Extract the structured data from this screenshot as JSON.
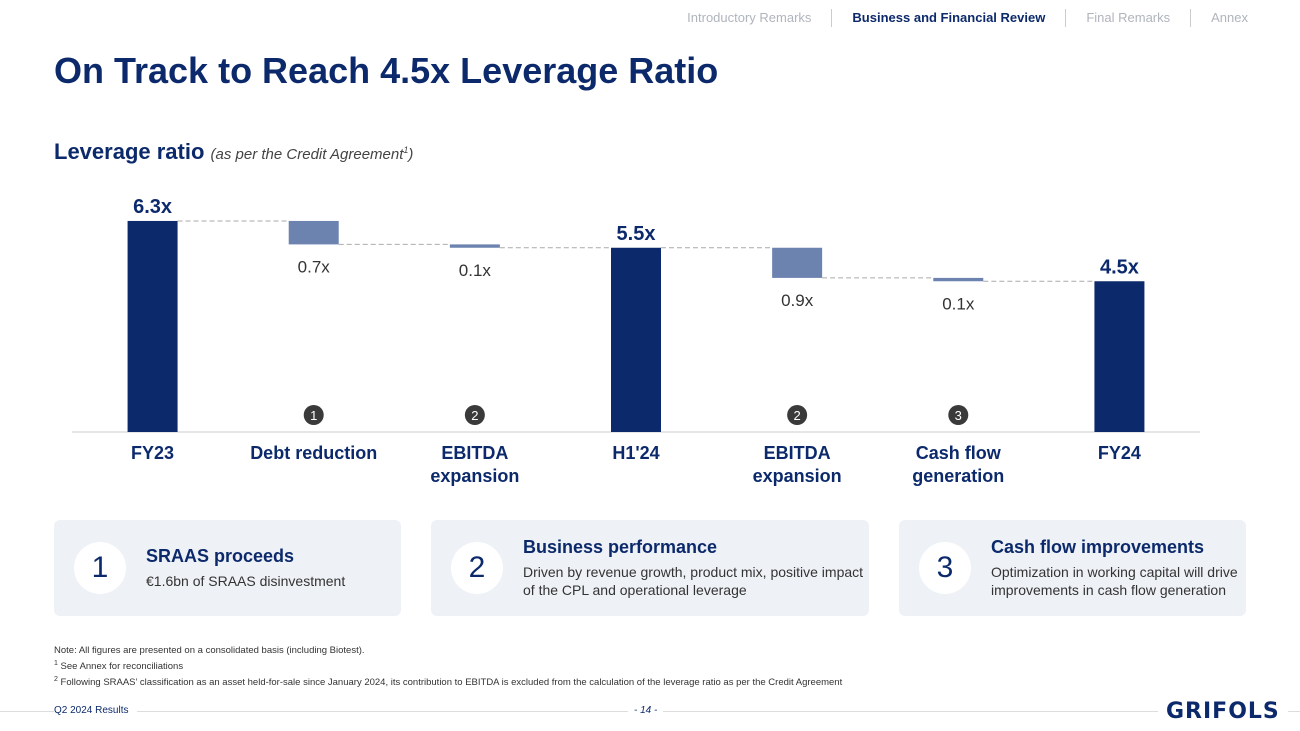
{
  "nav": {
    "items": [
      "Introductory Remarks",
      "Business and Financial Review",
      "Final Remarks",
      "Annex"
    ],
    "active": 1
  },
  "title": "On Track to Reach 4.5x Leverage Ratio",
  "chart_data": {
    "type": "waterfall",
    "title": "Leverage ratio",
    "subtitle": [
      "(as per the Credit Agreement",
      "1",
      ")"
    ],
    "categories": [
      "FY23",
      "Debt reduction",
      "EBITDA expansion",
      "H1'24",
      "EBITDA expansion",
      "Cash flow generation",
      "FY24"
    ],
    "measures": [
      "total",
      "relative",
      "relative",
      "total",
      "relative",
      "relative",
      "total"
    ],
    "values": [
      6.3,
      -0.7,
      -0.1,
      5.5,
      -0.9,
      -0.1,
      4.5
    ],
    "value_labels": [
      "6.3x",
      "0.7x",
      "0.1x",
      "5.5x",
      "0.9x",
      "0.1x",
      "4.5x"
    ],
    "markers": [
      null,
      "1",
      "2",
      null,
      "2",
      "3",
      null
    ],
    "colors": {
      "total": "#0c2a6b",
      "relative": "#6c83b0"
    },
    "ylim": [
      0,
      7
    ]
  },
  "cards": [
    {
      "number": "1",
      "title": "SRAAS proceeds",
      "text": "€1.6bn of SRAAS disinvestment"
    },
    {
      "number": "2",
      "title": "Business performance",
      "text": "Driven by revenue growth, product mix, positive impact of the CPL and operational leverage"
    },
    {
      "number": "3",
      "title": "Cash flow improvements",
      "text": "Optimization in working capital will drive improvements in cash flow generation"
    }
  ],
  "notes": [
    {
      "sup": null,
      "text": "Note: All figures are presented on a consolidated basis (including Biotest)."
    },
    {
      "sup": "1",
      "text": "See Annex for reconciliations"
    },
    {
      "sup": "2",
      "text": "Following SRAAS’ classification as an asset held-for-sale since January 2024, its contribution to EBITDA is excluded from the calculation of the leverage ratio as per the Credit Agreement"
    }
  ],
  "footer": {
    "left": "Q2 2024 Results",
    "page": "- 14 -",
    "logo": "GRIFOLS"
  }
}
